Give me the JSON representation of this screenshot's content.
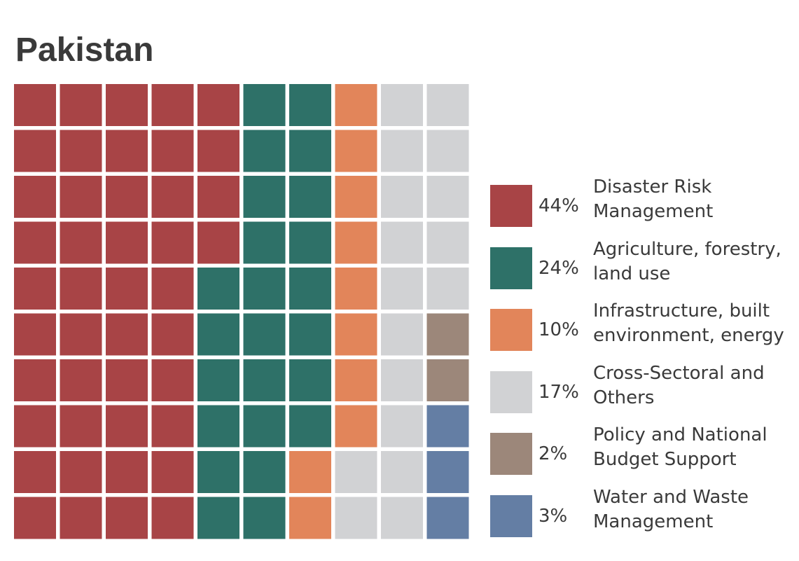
{
  "chart_data": {
    "type": "waffle",
    "title": "Pakistan",
    "grid": {
      "rows": 10,
      "cols": 10
    },
    "series": [
      {
        "key": "drm",
        "percent": 44,
        "percent_label": "44%",
        "label": "Disaster Risk\nManagement",
        "color": "#a84446",
        "cells": 44
      },
      {
        "key": "agri",
        "percent": 24,
        "percent_label": "24%",
        "label": "Agriculture, forestry,\nland use",
        "color": "#2e7168",
        "cells": 24
      },
      {
        "key": "infra",
        "percent": 10,
        "percent_label": "10%",
        "label": "Infrastructure, built\nenvironment, energy",
        "color": "#e2855a",
        "cells": 10
      },
      {
        "key": "cross",
        "percent": 17,
        "percent_label": "17%",
        "label": "Cross-Sectoral and\nOthers",
        "color": "#d1d2d4",
        "cells": 17
      },
      {
        "key": "policy",
        "percent": 2,
        "percent_label": "2%",
        "label": "Policy and National\nBudget Support",
        "color": "#9c877a",
        "cells": 2
      },
      {
        "key": "water",
        "percent": 3,
        "percent_label": "3%",
        "label": "Water and Waste\nManagement",
        "color": "#647ea4",
        "cells": 3
      }
    ],
    "cells": [
      [
        "drm",
        "drm",
        "drm",
        "drm",
        "drm",
        "agri",
        "agri",
        "infra",
        "cross",
        "cross"
      ],
      [
        "drm",
        "drm",
        "drm",
        "drm",
        "drm",
        "agri",
        "agri",
        "infra",
        "cross",
        "cross"
      ],
      [
        "drm",
        "drm",
        "drm",
        "drm",
        "drm",
        "agri",
        "agri",
        "infra",
        "cross",
        "cross"
      ],
      [
        "drm",
        "drm",
        "drm",
        "drm",
        "drm",
        "agri",
        "agri",
        "infra",
        "cross",
        "cross"
      ],
      [
        "drm",
        "drm",
        "drm",
        "drm",
        "agri",
        "agri",
        "agri",
        "infra",
        "cross",
        "cross"
      ],
      [
        "drm",
        "drm",
        "drm",
        "drm",
        "agri",
        "agri",
        "agri",
        "infra",
        "cross",
        "policy"
      ],
      [
        "drm",
        "drm",
        "drm",
        "drm",
        "agri",
        "agri",
        "agri",
        "infra",
        "cross",
        "policy"
      ],
      [
        "drm",
        "drm",
        "drm",
        "drm",
        "agri",
        "agri",
        "agri",
        "infra",
        "cross",
        "water"
      ],
      [
        "drm",
        "drm",
        "drm",
        "drm",
        "agri",
        "agri",
        "infra",
        "cross",
        "cross",
        "water"
      ],
      [
        "drm",
        "drm",
        "drm",
        "drm",
        "agri",
        "agri",
        "infra",
        "cross",
        "cross",
        "water"
      ]
    ],
    "legend_position": "right"
  }
}
